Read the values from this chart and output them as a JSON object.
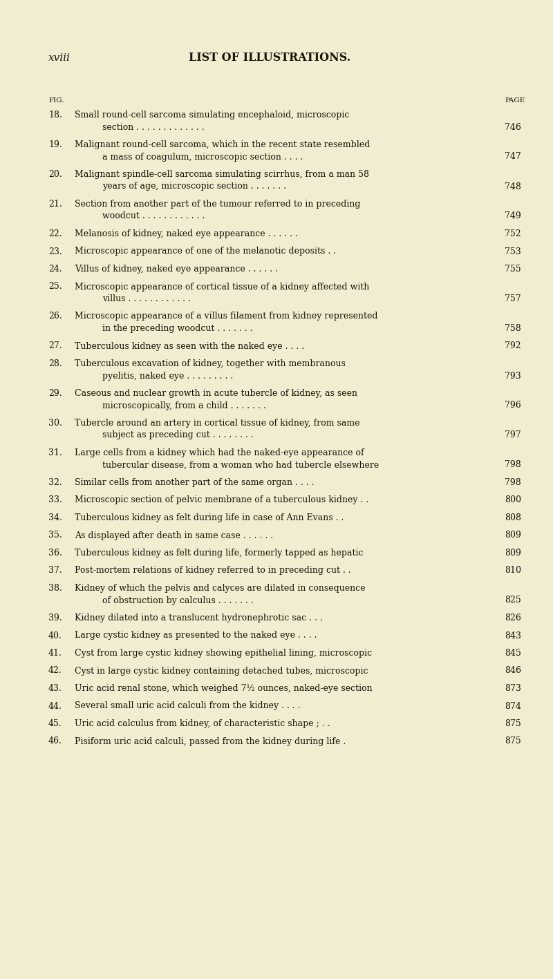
{
  "background_color": "#f2edd0",
  "page_roman": "xviii",
  "title": "LIST OF ILLUSTRATIONS.",
  "col_fig": "FIG.",
  "col_page": "PAGE",
  "entries": [
    {
      "num": "18.",
      "lines": [
        "Small round-cell sarcoma simulating encephaloid, microscopic",
        "section . . . . . . . . . . . . ."
      ],
      "page": "746"
    },
    {
      "num": "19.",
      "lines": [
        "Malignant round-cell sarcoma, which in the recent state resembled",
        "a mass of coagulum, microscopic section . . . ."
      ],
      "page": "747"
    },
    {
      "num": "20.",
      "lines": [
        "Malignant spindle-cell sarcoma simulating scirrhus, from a man 58",
        "years of age, microscopic section . . . . . . ."
      ],
      "page": "748"
    },
    {
      "num": "21.",
      "lines": [
        "Section from another part of the tumour referred to in preceding",
        "woodcut . . . . . . . . . . . ."
      ],
      "page": "749"
    },
    {
      "num": "22.",
      "lines": [
        "Melanosis of kidney, naked eye appearance . . . . . ."
      ],
      "page": "752"
    },
    {
      "num": "23.",
      "lines": [
        "Microscopic appearance of one of the melanotic deposits . ."
      ],
      "page": "753"
    },
    {
      "num": "24.",
      "lines": [
        "Villus of kidney, naked eye appearance . . . . . ."
      ],
      "page": "755"
    },
    {
      "num": "25.",
      "lines": [
        "Microscopic appearance of cortical tissue of a kidney affected with",
        "villus . . . . . . . . . . . ."
      ],
      "page": "757"
    },
    {
      "num": "26.",
      "lines": [
        "Microscopic appearance of a villus filament from kidney represented",
        "in the preceding woodcut . . . . . . ."
      ],
      "page": "758"
    },
    {
      "num": "27.",
      "lines": [
        "Tuberculous kidney as seen with the naked eye . . . ."
      ],
      "page": "792"
    },
    {
      "num": "28.",
      "lines": [
        "Tuberculous excavation of kidney, together with membranous",
        "pyelitis, naked eye . . . . . . . . ."
      ],
      "page": "793"
    },
    {
      "num": "29.",
      "lines": [
        "Caseous and nuclear growth in acute tubercle of kidney, as seen",
        "microscopically, from a child . . . . . . ."
      ],
      "page": "796"
    },
    {
      "num": "30.",
      "lines": [
        "Tubercle around an artery in cortical tissue of kidney, from same",
        "subject as preceding cut . . . . . . . ."
      ],
      "page": "797"
    },
    {
      "num": "31.",
      "lines": [
        "Large cells from a kidney which had the naked-eye appearance of",
        "tubercular disease, from a woman who had tubercle elsewhere"
      ],
      "page": "798"
    },
    {
      "num": "32.",
      "lines": [
        "Similar cells from another part of the same organ . . . ."
      ],
      "page": "798"
    },
    {
      "num": "33.",
      "lines": [
        "Microscopic section of pelvic membrane of a tuberculous kidney . ."
      ],
      "page": "800"
    },
    {
      "num": "34.",
      "lines": [
        "Tuberculous kidney as felt during life in case of Ann Evans . ."
      ],
      "page": "808"
    },
    {
      "num": "35.",
      "lines": [
        "As displayed after death in same case . . . . . ."
      ],
      "page": "809"
    },
    {
      "num": "36.",
      "lines": [
        "Tuberculous kidney as felt during life, formerly tapped as hepatic"
      ],
      "page": "809"
    },
    {
      "num": "37.",
      "lines": [
        "Post-mortem relations of kidney referred to in preceding cut . ."
      ],
      "page": "810"
    },
    {
      "num": "38.",
      "lines": [
        "Kidney of which the pelvis and calyces are dilated in consequence",
        "of obstruction by calculus . . . . . . ."
      ],
      "page": "825"
    },
    {
      "num": "39.",
      "lines": [
        "Kidney dilated into a translucent hydronephrotic sac . . ."
      ],
      "page": "826"
    },
    {
      "num": "40.",
      "lines": [
        "Large cystic kidney as presented to the naked eye . . . ."
      ],
      "page": "843"
    },
    {
      "num": "41.",
      "lines": [
        "Cyst from large cystic kidney showing epithelial lining, microscopic"
      ],
      "page": "845"
    },
    {
      "num": "42.",
      "lines": [
        "Cyst in large cystic kidney containing detached tubes, microscopic"
      ],
      "page": "846"
    },
    {
      "num": "43.",
      "lines": [
        "Uric acid renal stone, which weighed 7½ ounces, naked-eye section"
      ],
      "page": "873"
    },
    {
      "num": "44.",
      "lines": [
        "Several small uric acid calculi from the kidney . . . ."
      ],
      "page": "874"
    },
    {
      "num": "45.",
      "lines": [
        "Uric acid calculus from kidney, of characteristic shape ; . ."
      ],
      "page": "875"
    },
    {
      "num": "46.",
      "lines": [
        "Pisiform uric acid calculi, passed from the kidney during life ."
      ],
      "page": "875"
    }
  ],
  "text_color": "#1a1008",
  "title_fontsize": 11.5,
  "header_fontsize": 7.5,
  "body_fontsize": 9.0,
  "roman_fontsize": 11.0,
  "fig_width": 8.0,
  "fig_height": 14.17,
  "dpi": 100
}
